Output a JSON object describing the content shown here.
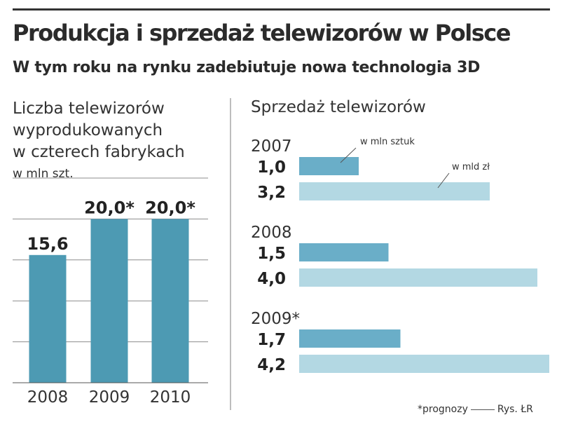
{
  "title": "Produkcja i sprzedaż telewizorów w Polsce",
  "subtitle": "W tym roku na rynku zadebiutuje nowa technologia 3D",
  "footnote": "*prognozy",
  "credit": "Rys. ŁR",
  "colors": {
    "dark_bar": "#4d9ab3",
    "mid_bar": "#6aaec8",
    "light_bar": "#b3d8e3",
    "grid": "#8c8c8c"
  },
  "chart_data": [
    {
      "type": "bar",
      "title_lines": [
        "Liczba telewizorów",
        "wyprodukowanych",
        "w czterech fabrykach"
      ],
      "ylabel": "w mln szt.",
      "categories": [
        "2008",
        "2009",
        "2010"
      ],
      "values": [
        15.6,
        20.0,
        20.0
      ],
      "value_labels": [
        "15,6",
        "20,0*",
        "20,0*"
      ],
      "ylim": [
        0,
        25
      ],
      "grid": true
    },
    {
      "type": "bar",
      "orientation": "horizontal",
      "title": "Sprzedaż telewizorów",
      "groups": [
        {
          "label": "2007",
          "units": {
            "value": 1.0,
            "label": "1,0"
          },
          "revenue": {
            "value": 3.2,
            "label": "3,2"
          }
        },
        {
          "label": "2008",
          "units": {
            "value": 1.5,
            "label": "1,5"
          },
          "revenue": {
            "value": 4.0,
            "label": "4,0"
          }
        },
        {
          "label": "2009*",
          "units": {
            "value": 1.7,
            "label": "1,7"
          },
          "revenue": {
            "value": 4.2,
            "label": "4,2"
          }
        }
      ],
      "series": [
        {
          "name": "w mln sztuk",
          "key": "units"
        },
        {
          "name": "w mld zł",
          "key": "revenue"
        }
      ]
    }
  ]
}
